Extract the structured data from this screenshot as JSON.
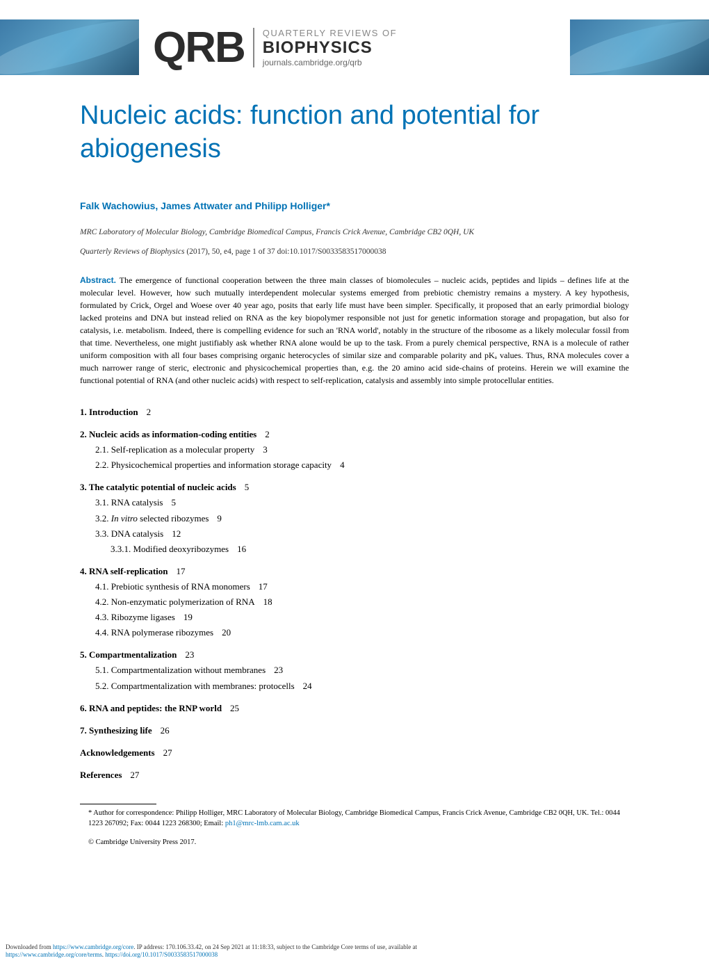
{
  "header": {
    "logo_text": "QRB",
    "line1": "QUARTERLY REVIEWS OF",
    "line2": "BIOPHYSICS",
    "line3": "journals.cambridge.org/qrb"
  },
  "article": {
    "title": "Nucleic acids: function and potential for abiogenesis",
    "authors": "Falk Wachowius, James Attwater and Philipp Holliger*",
    "affiliation": "MRC Laboratory of Molecular Biology, Cambridge Biomedical Campus, Francis Crick Avenue, Cambridge CB2 0QH, UK",
    "citation_journal": "Quarterly Reviews of Biophysics",
    "citation_detail": "(2017), 50, e4, page 1 of 37   doi:10.1017/S0033583517000038",
    "abstract_label": "Abstract.",
    "abstract_text": "The emergence of functional cooperation between the three main classes of biomolecules – nucleic acids, peptides and lipids – defines life at the molecular level. However, how such mutually interdependent molecular systems emerged from prebiotic chemistry remains a mystery. A key hypothesis, formulated by Crick, Orgel and Woese over 40 year ago, posits that early life must have been simpler. Specifically, it proposed that an early primordial biology lacked proteins and DNA but instead relied on RNA as the key biopolymer responsible not just for genetic information storage and propagation, but also for catalysis, i.e. metabolism. Indeed, there is compelling evidence for such an 'RNA world', notably in the structure of the ribosome as a likely molecular fossil from that time. Nevertheless, one might justifiably ask whether RNA alone would be up to the task. From a purely chemical perspective, RNA is a molecule of rather uniform composition with all four bases comprising organic heterocycles of similar size and comparable polarity and pKₐ values. Thus, RNA molecules cover a much narrower range of steric, electronic and physicochemical properties than, e.g. the 20 amino acid side-chains of proteins. Herein we will examine the functional potential of RNA (and other nucleic acids) with respect to self-replication, catalysis and assembly into simple protocellular entities."
  },
  "toc": {
    "s1": {
      "num": "1.",
      "title": "Introduction",
      "page": "2"
    },
    "s2": {
      "num": "2.",
      "title": "Nucleic acids as information-coding entities",
      "page": "2",
      "sub1": {
        "num": "2.1.",
        "title": "Self-replication as a molecular property",
        "page": "3"
      },
      "sub2": {
        "num": "2.2.",
        "title": "Physicochemical properties and information storage capacity",
        "page": "4"
      }
    },
    "s3": {
      "num": "3.",
      "title": "The catalytic potential of nucleic acids",
      "page": "5",
      "sub1": {
        "num": "3.1.",
        "title": "RNA catalysis",
        "page": "5"
      },
      "sub2": {
        "num": "3.2.",
        "title_pre": "In vitro",
        "title_post": " selected ribozymes",
        "page": "9"
      },
      "sub3": {
        "num": "3.3.",
        "title": "DNA catalysis",
        "page": "12",
        "subsub1": {
          "num": "3.3.1.",
          "title": "Modified deoxyribozymes",
          "page": "16"
        }
      }
    },
    "s4": {
      "num": "4.",
      "title": "RNA self-replication",
      "page": "17",
      "sub1": {
        "num": "4.1.",
        "title": "Prebiotic synthesis of RNA monomers",
        "page": "17"
      },
      "sub2": {
        "num": "4.2.",
        "title": "Non-enzymatic polymerization of RNA",
        "page": "18"
      },
      "sub3": {
        "num": "4.3.",
        "title": "Ribozyme ligases",
        "page": "19"
      },
      "sub4": {
        "num": "4.4.",
        "title": "RNA polymerase ribozymes",
        "page": "20"
      }
    },
    "s5": {
      "num": "5.",
      "title": "Compartmentalization",
      "page": "23",
      "sub1": {
        "num": "5.1.",
        "title": "Compartmentalization without membranes",
        "page": "23"
      },
      "sub2": {
        "num": "5.2.",
        "title": "Compartmentalization with membranes: protocells",
        "page": "24"
      }
    },
    "s6": {
      "num": "6.",
      "title": "RNA and peptides: the RNP world",
      "page": "25"
    },
    "s7": {
      "num": "7.",
      "title": "Synthesizing life",
      "page": "26"
    },
    "ack": {
      "title": "Acknowledgements",
      "page": "27"
    },
    "ref": {
      "title": "References",
      "page": "27"
    }
  },
  "footnote": {
    "text_pre": "* Author for correspondence: Philipp Holliger, MRC Laboratory of Molecular Biology, Cambridge Biomedical Campus, Francis Crick Avenue, Cambridge CB2 0QH, UK. Tel.: 0044 1223 267092; Fax: 0044 1223 268300; Email: ",
    "email": "ph1@mrc-lmb.cam.ac.uk"
  },
  "copyright": "© Cambridge University Press 2017.",
  "download": {
    "line1_pre": "Downloaded from ",
    "line1_link": "https://www.cambridge.org/core",
    "line1_post": ". IP address: 170.106.33.42, on 24 Sep 2021 at 11:18:33, subject to the Cambridge Core terms of use, available at",
    "line2_link1": "https://www.cambridge.org/core/terms",
    "line2_mid": ". ",
    "line2_link2": "https://doi.org/10.1017/S0033583517000038"
  },
  "colors": {
    "accent": "#0072b5",
    "text": "#000000",
    "gray": "#888888"
  }
}
